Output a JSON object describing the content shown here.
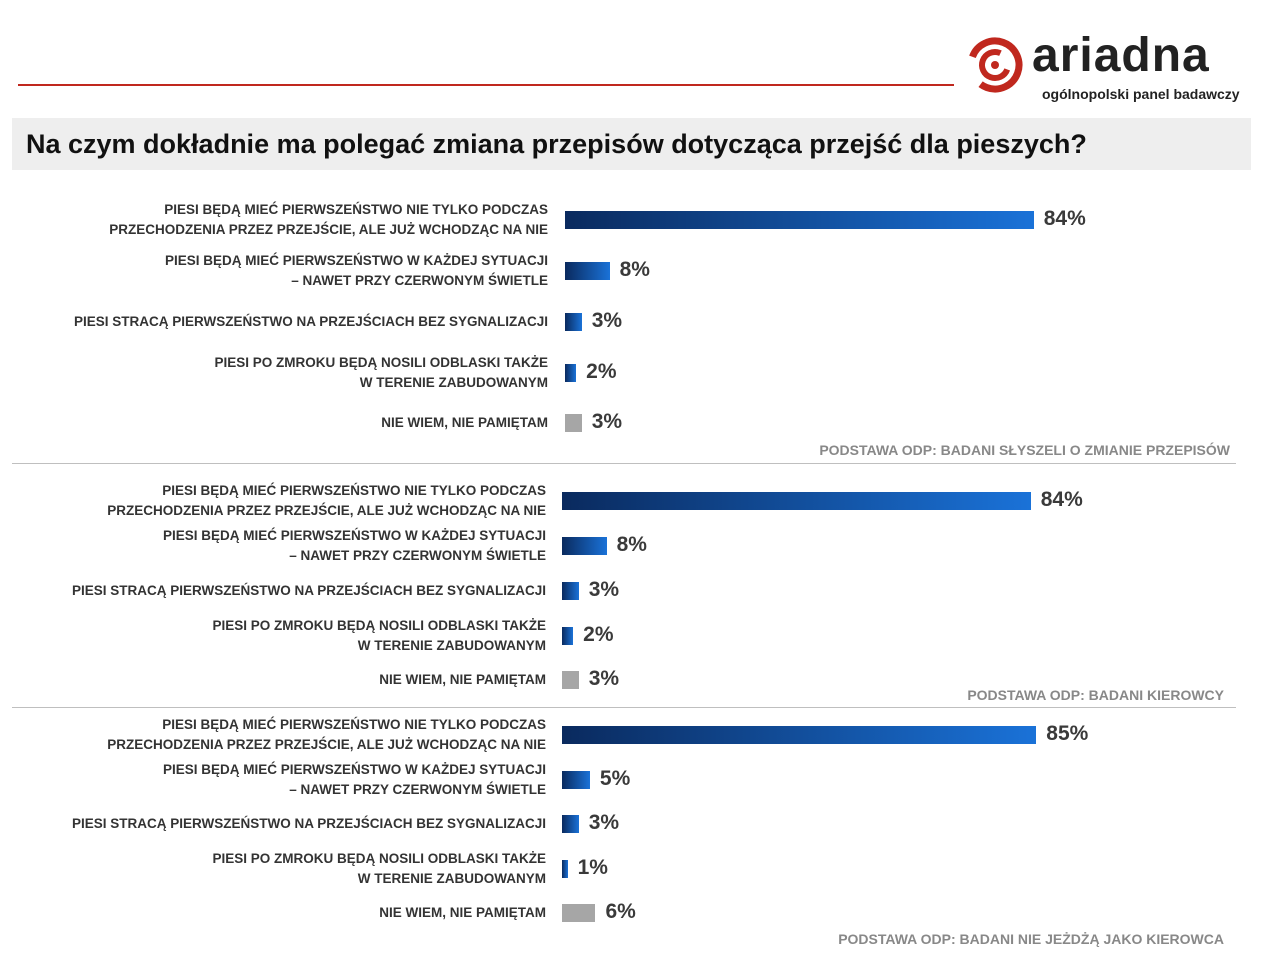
{
  "brand": {
    "name": "ariadna",
    "tagline": "ogólnopolski panel badawczy",
    "accent": "#c0281e"
  },
  "title": "Na czym dokładnie ma polegać zmiana przepisów dotycząca przejść dla pieszych?",
  "chart_data": [
    {
      "type": "bar",
      "orientation": "horizontal",
      "categories": [
        "PIESI BĘDĄ MIEĆ PIERWSZEŃSTWO NIE TYLKO PODCZAS\nPRZECHODZENIA PRZEZ PRZEJŚCIE, ALE JUŻ WCHODZĄC NA NIE",
        "PIESI BĘDĄ MIEĆ PIERWSZEŃSTWO W KAŻDEJ SYTUACJI\n– NAWET PRZY CZERWONYM ŚWIETLE",
        "PIESI STRACĄ PIERWSZEŃSTWO NA PRZEJŚCIACH BEZ SYGNALIZACJI",
        "PIESI PO ZMROKU BĘDĄ NOSILI ODBLASKI TAKŻE\nW TERENIE ZABUDOWANYM",
        "NIE WIEM, NIE PAMIĘTAM"
      ],
      "values": [
        84,
        8,
        3,
        2,
        3
      ],
      "labels": [
        "84%",
        "8%",
        "3%",
        "2%",
        "3%"
      ],
      "unit": "%",
      "colors": [
        "gradient-blue",
        "gradient-blue",
        "gradient-blue",
        "gradient-blue",
        "#a6a6a6"
      ],
      "basis": "PODSTAWA ODP: BADANI SŁYSZELI O ZMIANIE PRZEPISÓW"
    },
    {
      "type": "bar",
      "orientation": "horizontal",
      "categories": [
        "PIESI BĘDĄ MIEĆ PIERWSZEŃSTWO NIE TYLKO PODCZAS\nPRZECHODZENIA PRZEZ PRZEJŚCIE, ALE JUŻ WCHODZĄC NA NIE",
        "PIESI BĘDĄ MIEĆ PIERWSZEŃSTWO W KAŻDEJ SYTUACJI\n– NAWET PRZY CZERWONYM ŚWIETLE",
        "PIESI STRACĄ PIERWSZEŃSTWO NA PRZEJŚCIACH BEZ SYGNALIZACJI",
        "PIESI PO ZMROKU BĘDĄ NOSILI ODBLASKI TAKŻE\nW TERENIE ZABUDOWANYM",
        "NIE WIEM, NIE PAMIĘTAM"
      ],
      "values": [
        84,
        8,
        3,
        2,
        3
      ],
      "labels": [
        "84%",
        "8%",
        "3%",
        "2%",
        "3%"
      ],
      "unit": "%",
      "colors": [
        "gradient-blue",
        "gradient-blue",
        "gradient-blue",
        "gradient-blue",
        "#a6a6a6"
      ],
      "basis": "PODSTAWA ODP: BADANI KIEROWCY"
    },
    {
      "type": "bar",
      "orientation": "horizontal",
      "categories": [
        "PIESI BĘDĄ MIEĆ PIERWSZEŃSTWO NIE TYLKO PODCZAS\nPRZECHODZENIA PRZEZ PRZEJŚCIE, ALE JUŻ WCHODZĄC NA NIE",
        "PIESI BĘDĄ MIEĆ PIERWSZEŃSTWO W KAŻDEJ SYTUACJI\n– NAWET PRZY CZERWONYM ŚWIETLE",
        "PIESI STRACĄ PIERWSZEŃSTWO NA PRZEJŚCIACH BEZ SYGNALIZACJI",
        "PIESI PO ZMROKU BĘDĄ NOSILI ODBLASKI TAKŻE\nW TERENIE ZABUDOWANYM",
        "NIE WIEM, NIE PAMIĘTAM"
      ],
      "values": [
        85,
        5,
        3,
        1,
        6
      ],
      "labels": [
        "85%",
        "5%",
        "3%",
        "1%",
        "6%"
      ],
      "unit": "%",
      "colors": [
        "gradient-blue",
        "gradient-blue",
        "gradient-blue",
        "gradient-blue",
        "#a6a6a6"
      ],
      "basis": "PODSTAWA ODP: BADANI NIE JEŻDŻĄ JAKO KIEROWCA"
    }
  ]
}
